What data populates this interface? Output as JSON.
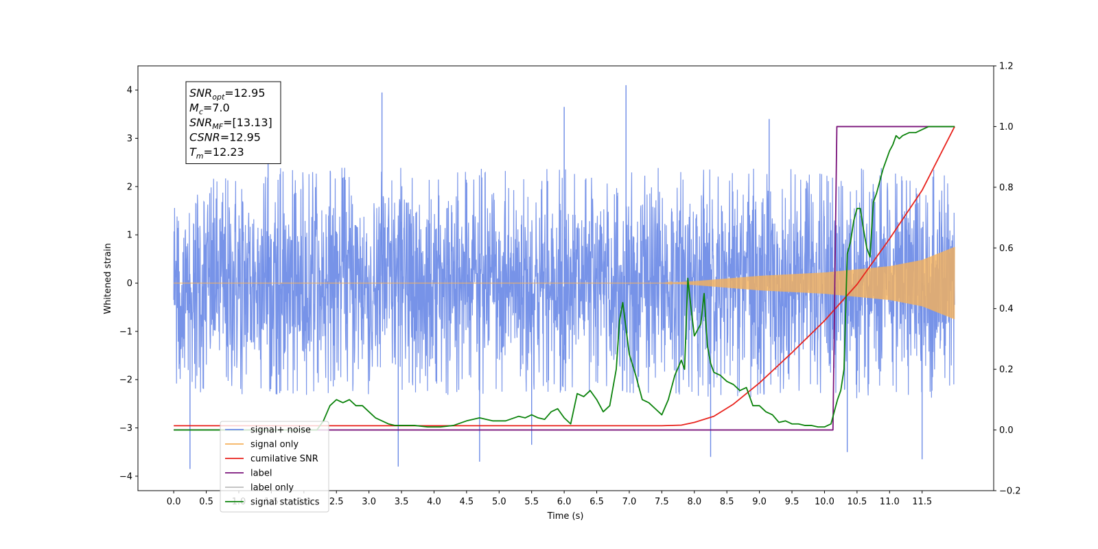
{
  "chart_data": {
    "type": "line",
    "xlabel": "Time (s)",
    "ylabel": "Whitened strain",
    "xlim": [
      -0.55,
      12.6
    ],
    "ylim": [
      -4.3,
      4.5
    ],
    "y2lim": [
      -0.2,
      1.2
    ],
    "x_ticks": [
      0.0,
      0.5,
      1.0,
      1.5,
      2.0,
      2.5,
      3.0,
      3.5,
      4.0,
      4.5,
      5.0,
      5.5,
      6.0,
      6.5,
      7.0,
      7.5,
      8.0,
      8.5,
      9.0,
      9.5,
      10.0,
      10.5,
      11.0,
      11.5
    ],
    "x_tick_labels": [
      "0.0",
      "0.5",
      "1.0",
      "1.5",
      "2.0",
      "2.5",
      "3.0",
      "3.5",
      "4.0",
      "4.5",
      "5.0",
      "5.5",
      "6.0",
      "6.5",
      "7.0",
      "7.5",
      "8.0",
      "8.5",
      "9.0",
      "9.5",
      "10.0",
      "10.5",
      "11.0",
      "11.5"
    ],
    "y_ticks": [
      -4,
      -3,
      -2,
      -1,
      0,
      1,
      2,
      3,
      4
    ],
    "y_tick_labels": [
      "−4",
      "−3",
      "−2",
      "−1",
      "0",
      "1",
      "2",
      "3",
      "4"
    ],
    "y2_ticks": [
      -0.2,
      0.0,
      0.2,
      0.4,
      0.6,
      0.8,
      1.0,
      1.2
    ],
    "y2_tick_labels": [
      "−0.2",
      "0.0",
      "0.2",
      "0.4",
      "0.6",
      "0.8",
      "1.0",
      "1.2"
    ],
    "legend_position": "lower-left",
    "annotation": {
      "lines": [
        {
          "base": "SNR",
          "sub": "opt",
          "value": "=12.95"
        },
        {
          "base": "M",
          "sub": "c",
          "value": "=7.0"
        },
        {
          "base": "SNR",
          "sub": "MF",
          "value": "=[13.13]"
        },
        {
          "base": "CSNR",
          "sub": "",
          "value": "=12.95"
        },
        {
          "base": "T",
          "sub": "m",
          "value": "=12.23"
        }
      ]
    },
    "series": [
      {
        "name": "signal+ noise",
        "color": "#6b8ae6",
        "axis": "left",
        "kind": "noise",
        "x_range": [
          0.0,
          12.0
        ],
        "envelope_min": [
          [
            0.0,
            -2.3
          ],
          [
            12.0,
            -2.4
          ]
        ],
        "envelope_max": [
          [
            0.0,
            2.4
          ],
          [
            12.0,
            2.4
          ]
        ],
        "extreme_peaks": [
          [
            0.25,
            -3.85
          ],
          [
            3.2,
            3.95
          ],
          [
            3.45,
            -3.8
          ],
          [
            4.7,
            -3.7
          ],
          [
            6.95,
            4.1
          ],
          [
            6.0,
            3.65
          ],
          [
            8.25,
            -3.6
          ],
          [
            11.5,
            -3.65
          ],
          [
            10.35,
            -3.5
          ],
          [
            9.15,
            3.4
          ],
          [
            1.45,
            3.3
          ],
          [
            5.5,
            -3.35
          ]
        ]
      },
      {
        "name": "signal only",
        "color": "#f5b15a",
        "axis": "left",
        "kind": "chirp",
        "x_range": [
          0.0,
          12.0
        ],
        "amplitude_envelope": [
          [
            0.0,
            0.0
          ],
          [
            7.5,
            0.0
          ],
          [
            8.0,
            0.04
          ],
          [
            9.0,
            0.15
          ],
          [
            10.0,
            0.22
          ],
          [
            11.0,
            0.35
          ],
          [
            11.5,
            0.48
          ],
          [
            12.0,
            0.75
          ]
        ]
      },
      {
        "name": "cumilative SNR",
        "color": "#e8211b",
        "axis": "right",
        "x": [
          0.0,
          7.5,
          7.8,
          8.0,
          8.3,
          8.6,
          9.0,
          9.5,
          10.0,
          10.5,
          11.0,
          11.5,
          12.0
        ],
        "y": [
          0.014,
          0.014,
          0.016,
          0.025,
          0.045,
          0.085,
          0.155,
          0.255,
          0.36,
          0.48,
          0.63,
          0.79,
          1.0
        ]
      },
      {
        "name": "label",
        "color": "#7a127a",
        "axis": "right",
        "x": [
          0.0,
          10.13,
          10.19,
          12.0
        ],
        "y": [
          0.0,
          0.0,
          1.0,
          1.0
        ]
      },
      {
        "name": "label only",
        "color": "#bbbbbb",
        "axis": "right",
        "x": [],
        "y": []
      },
      {
        "name": "signal statistics",
        "color": "#0a820a",
        "axis": "right",
        "x": [
          0.0,
          2.2,
          2.3,
          2.4,
          2.5,
          2.6,
          2.7,
          2.8,
          2.9,
          3.0,
          3.1,
          3.2,
          3.3,
          3.4,
          3.5,
          3.7,
          3.9,
          4.1,
          4.3,
          4.5,
          4.7,
          4.9,
          5.1,
          5.3,
          5.4,
          5.5,
          5.6,
          5.7,
          5.8,
          5.9,
          6.0,
          6.1,
          6.2,
          6.3,
          6.4,
          6.5,
          6.6,
          6.7,
          6.8,
          6.85,
          6.9,
          7.0,
          7.1,
          7.2,
          7.3,
          7.4,
          7.5,
          7.6,
          7.7,
          7.8,
          7.85,
          7.9,
          7.95,
          8.0,
          8.05,
          8.1,
          8.15,
          8.2,
          8.25,
          8.3,
          8.4,
          8.5,
          8.6,
          8.7,
          8.8,
          8.9,
          9.0,
          9.1,
          9.2,
          9.3,
          9.4,
          9.5,
          9.6,
          9.7,
          9.8,
          9.9,
          10.0,
          10.1,
          10.15,
          10.2,
          10.25,
          10.3,
          10.35,
          10.4,
          10.45,
          10.5,
          10.55,
          10.6,
          10.65,
          10.7,
          10.75,
          10.8,
          10.85,
          10.9,
          11.0,
          11.05,
          11.1,
          11.15,
          11.2,
          11.3,
          11.4,
          11.5,
          11.6,
          11.7,
          11.8,
          11.9,
          12.0
        ],
        "y": [
          0.0,
          0.0,
          0.03,
          0.08,
          0.1,
          0.09,
          0.1,
          0.08,
          0.08,
          0.06,
          0.04,
          0.03,
          0.02,
          0.015,
          0.015,
          0.015,
          0.01,
          0.01,
          0.015,
          0.03,
          0.04,
          0.03,
          0.03,
          0.045,
          0.04,
          0.05,
          0.04,
          0.035,
          0.06,
          0.07,
          0.04,
          0.02,
          0.12,
          0.11,
          0.13,
          0.1,
          0.06,
          0.08,
          0.2,
          0.36,
          0.42,
          0.25,
          0.18,
          0.1,
          0.09,
          0.07,
          0.05,
          0.1,
          0.18,
          0.23,
          0.2,
          0.5,
          0.4,
          0.31,
          0.33,
          0.35,
          0.45,
          0.28,
          0.22,
          0.19,
          0.18,
          0.16,
          0.15,
          0.13,
          0.14,
          0.08,
          0.08,
          0.06,
          0.05,
          0.025,
          0.03,
          0.02,
          0.02,
          0.015,
          0.015,
          0.01,
          0.01,
          0.02,
          0.06,
          0.1,
          0.13,
          0.2,
          0.58,
          0.62,
          0.69,
          0.73,
          0.73,
          0.66,
          0.6,
          0.57,
          0.75,
          0.78,
          0.82,
          0.86,
          0.92,
          0.94,
          0.97,
          0.96,
          0.97,
          0.98,
          0.98,
          0.99,
          1.0,
          1.0,
          1.0,
          1.0,
          1.0
        ]
      }
    ]
  }
}
